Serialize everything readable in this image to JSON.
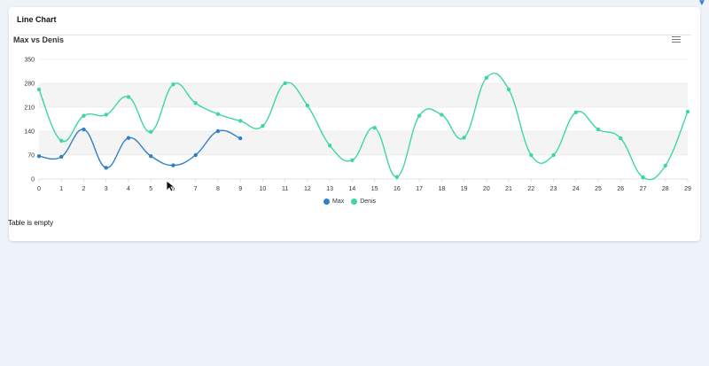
{
  "card": {
    "title": "Line Chart"
  },
  "chart": {
    "title": "Max vs Denis",
    "menu_icon": "hamburger-menu-icon"
  },
  "table": {
    "empty_message": "Table is empty"
  },
  "colors": {
    "max": "#2f80c8",
    "denis": "#3ed89b",
    "band": "#f4f4f4",
    "grid": "#e2e2e2",
    "background": "#eef2f9"
  },
  "chart_data": {
    "type": "line",
    "title": "Max vs Denis",
    "xlabel": "",
    "ylabel": "",
    "ylim": [
      0,
      350
    ],
    "yticks": [
      0,
      70,
      140,
      210,
      280,
      350
    ],
    "x": [
      0,
      1,
      2,
      3,
      4,
      5,
      6,
      7,
      8,
      9,
      10,
      11,
      12,
      13,
      14,
      15,
      16,
      17,
      18,
      19,
      20,
      21,
      22,
      23,
      24,
      25,
      26,
      27,
      28,
      29
    ],
    "legend_position": "bottom-center",
    "grid": true,
    "series": [
      {
        "name": "Max",
        "color": "#2f80c8",
        "x": [
          0,
          1,
          2,
          3,
          4,
          5,
          6,
          7,
          8,
          9
        ],
        "values": [
          67,
          65,
          145,
          33,
          120,
          67,
          40,
          70,
          140,
          119
        ]
      },
      {
        "name": "Denis",
        "color": "#3ed89b",
        "x": [
          0,
          1,
          2,
          3,
          4,
          5,
          6,
          7,
          8,
          9,
          10,
          11,
          12,
          13,
          14,
          15,
          16,
          17,
          18,
          19,
          20,
          21,
          22,
          23,
          24,
          25,
          26,
          27,
          28,
          29
        ],
        "values": [
          262,
          112,
          185,
          188,
          240,
          138,
          277,
          222,
          190,
          170,
          155,
          280,
          215,
          98,
          55,
          150,
          6,
          185,
          188,
          121,
          296,
          262,
          70,
          70,
          195,
          145,
          119,
          5,
          39,
          197
        ]
      }
    ]
  }
}
